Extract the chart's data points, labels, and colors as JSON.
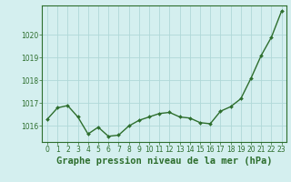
{
  "x": [
    0,
    1,
    2,
    3,
    4,
    5,
    6,
    7,
    8,
    9,
    10,
    11,
    12,
    13,
    14,
    15,
    16,
    17,
    18,
    19,
    20,
    21,
    22,
    23
  ],
  "y": [
    1016.3,
    1016.8,
    1016.9,
    1016.4,
    1015.65,
    1015.95,
    1015.55,
    1015.6,
    1016.0,
    1016.25,
    1016.4,
    1016.55,
    1016.6,
    1016.4,
    1016.35,
    1016.15,
    1016.1,
    1016.65,
    1016.85,
    1017.2,
    1018.1,
    1019.1,
    1019.9,
    1021.05
  ],
  "ylim_min": 1015.3,
  "ylim_max": 1021.3,
  "yticks": [
    1016,
    1017,
    1018,
    1019,
    1020
  ],
  "xticks": [
    0,
    1,
    2,
    3,
    4,
    5,
    6,
    7,
    8,
    9,
    10,
    11,
    12,
    13,
    14,
    15,
    16,
    17,
    18,
    19,
    20,
    21,
    22,
    23
  ],
  "xlabel": "Graphe pression niveau de la mer (hPa)",
  "line_color": "#2d6e2d",
  "marker": "D",
  "marker_size": 2.0,
  "line_width": 1.0,
  "bg_color": "#d4efef",
  "grid_color": "#b0d8d8",
  "tick_label_size": 5.5,
  "xlabel_size": 7.5,
  "xlabel_weight": "bold",
  "xlabel_color": "#2d6e2d"
}
